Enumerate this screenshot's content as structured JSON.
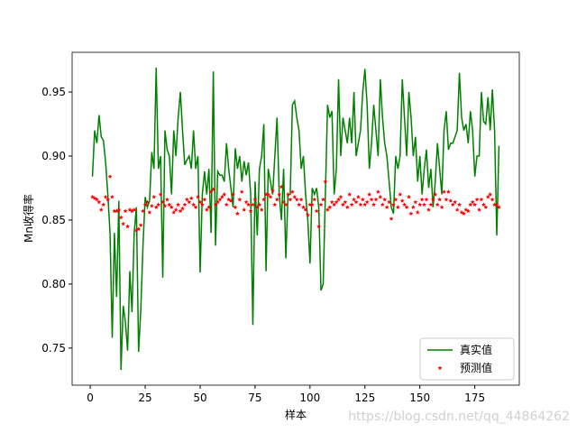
{
  "chart_data": {
    "type": "line_scatter",
    "xlabel": "样本",
    "ylabel": "Mn收得率",
    "watermark": "https://blog.csdn.net/qq_44864262",
    "legend": "lower right",
    "xlim": [
      -8.25,
      195.25
    ],
    "ylim": [
      0.721,
      0.981
    ],
    "xticks": [
      0,
      25,
      50,
      75,
      100,
      125,
      150,
      175
    ],
    "yticks": [
      0.75,
      {
        "value": 0.8,
        "label": "0.80"
      },
      0.85,
      {
        "value": 0.9,
        "label": "0.90"
      },
      0.95
    ],
    "x": [
      1,
      2,
      3,
      4,
      5,
      6,
      7,
      8,
      9,
      10,
      11,
      12,
      13,
      14,
      15,
      16,
      17,
      18,
      19,
      20,
      21,
      22,
      23,
      24,
      25,
      26,
      27,
      28,
      29,
      30,
      31,
      32,
      33,
      34,
      35,
      36,
      37,
      38,
      39,
      40,
      41,
      42,
      43,
      44,
      45,
      46,
      47,
      48,
      49,
      50,
      51,
      52,
      53,
      54,
      55,
      56,
      57,
      58,
      59,
      60,
      61,
      62,
      63,
      64,
      65,
      66,
      67,
      68,
      69,
      70,
      71,
      72,
      73,
      74,
      75,
      76,
      77,
      78,
      79,
      80,
      81,
      82,
      83,
      84,
      85,
      86,
      87,
      88,
      89,
      90,
      91,
      92,
      93,
      94,
      95,
      96,
      97,
      98,
      99,
      100,
      101,
      102,
      103,
      104,
      105,
      106,
      107,
      108,
      109,
      110,
      111,
      112,
      113,
      114,
      115,
      116,
      117,
      118,
      119,
      120,
      121,
      122,
      123,
      124,
      125,
      126,
      127,
      128,
      129,
      130,
      131,
      132,
      133,
      134,
      135,
      136,
      137,
      138,
      139,
      140,
      141,
      142,
      143,
      144,
      145,
      146,
      147,
      148,
      149,
      150,
      151,
      152,
      153,
      154,
      155,
      156,
      157,
      158,
      159,
      160,
      161,
      162,
      163,
      164,
      165,
      166,
      167,
      168,
      169,
      170,
      171,
      172,
      173,
      174,
      175,
      176,
      177,
      178,
      179,
      180,
      181,
      182,
      183,
      184,
      185,
      186
    ],
    "series": [
      {
        "name": "真实值",
        "kind": "line",
        "color": "#008000",
        "values": [
          0.884,
          0.92,
          0.91,
          0.932,
          0.915,
          0.912,
          0.895,
          0.87,
          0.84,
          0.758,
          0.84,
          0.79,
          0.865,
          0.733,
          0.783,
          0.77,
          0.748,
          0.81,
          0.778,
          0.84,
          0.86,
          0.747,
          0.78,
          0.83,
          0.868,
          0.86,
          0.865,
          0.903,
          0.89,
          0.969,
          0.89,
          0.9,
          0.805,
          0.92,
          0.905,
          0.9,
          0.87,
          0.92,
          0.9,
          0.93,
          0.95,
          0.92,
          0.893,
          0.897,
          0.9,
          0.89,
          0.92,
          0.89,
          0.9,
          0.809,
          0.87,
          0.888,
          0.87,
          0.89,
          0.84,
          0.966,
          0.83,
          0.888,
          0.885,
          0.885,
          0.88,
          0.91,
          0.89,
          0.875,
          0.86,
          0.906,
          0.89,
          0.9,
          0.88,
          0.896,
          0.885,
          0.895,
          0.87,
          0.768,
          0.88,
          0.838,
          0.89,
          0.9,
          0.925,
          0.81,
          0.89,
          0.88,
          0.87,
          0.9,
          0.93,
          0.87,
          0.85,
          0.89,
          0.82,
          0.87,
          0.87,
          0.94,
          0.943,
          0.93,
          0.92,
          0.89,
          0.9,
          0.87,
          0.85,
          0.816,
          0.875,
          0.87,
          0.875,
          0.86,
          0.795,
          0.8,
          0.87,
          0.94,
          0.93,
          0.935,
          0.87,
          0.89,
          0.96,
          0.9,
          0.93,
          0.92,
          0.91,
          0.93,
          0.91,
          0.95,
          0.9,
          0.91,
          0.92,
          0.95,
          0.968,
          0.94,
          0.89,
          0.91,
          0.94,
          0.92,
          0.9,
          0.96,
          0.93,
          0.91,
          0.9,
          0.88,
          0.86,
          0.855,
          0.9,
          0.89,
          0.9,
          0.96,
          0.93,
          0.9,
          0.95,
          0.93,
          0.9,
          0.915,
          0.88,
          0.9,
          0.87,
          0.89,
          0.905,
          0.875,
          0.89,
          0.86,
          0.88,
          0.91,
          0.89,
          0.87,
          0.92,
          0.935,
          0.905,
          0.91,
          0.91,
          0.915,
          0.92,
          0.965,
          0.93,
          0.92,
          0.925,
          0.91,
          0.935,
          0.92,
          0.884,
          0.9,
          0.9,
          0.95,
          0.927,
          0.925,
          0.946,
          0.92,
          0.952,
          0.92,
          0.838,
          0.908
        ]
      },
      {
        "name": "预测值",
        "kind": "scatter",
        "color": "#ff0000",
        "values": [
          0.868,
          0.867,
          0.866,
          0.864,
          0.858,
          0.862,
          0.868,
          0.866,
          0.884,
          0.868,
          0.857,
          0.857,
          0.858,
          0.852,
          0.847,
          0.857,
          0.845,
          0.858,
          0.857,
          0.858,
          0.842,
          0.843,
          0.846,
          0.857,
          0.862,
          0.864,
          0.856,
          0.861,
          0.868,
          0.86,
          0.862,
          0.87,
          0.864,
          0.861,
          0.866,
          0.862,
          0.86,
          0.856,
          0.858,
          0.862,
          0.857,
          0.859,
          0.862,
          0.866,
          0.864,
          0.867,
          0.862,
          0.86,
          0.868,
          0.864,
          0.862,
          0.866,
          0.858,
          0.86,
          0.872,
          0.874,
          0.862,
          0.864,
          0.866,
          0.868,
          0.87,
          0.862,
          0.866,
          0.865,
          0.87,
          0.86,
          0.855,
          0.866,
          0.872,
          0.858,
          0.864,
          0.862,
          0.857,
          0.862,
          0.866,
          0.86,
          0.862,
          0.858,
          0.866,
          0.87,
          0.87,
          0.868,
          0.873,
          0.862,
          0.866,
          0.87,
          0.876,
          0.864,
          0.862,
          0.87,
          0.866,
          0.872,
          0.868,
          0.866,
          0.862,
          0.866,
          0.86,
          0.858,
          0.854,
          0.862,
          0.862,
          0.866,
          0.857,
          0.845,
          0.862,
          0.866,
          0.88,
          0.858,
          0.86,
          0.864,
          0.862,
          0.864,
          0.866,
          0.868,
          0.862,
          0.864,
          0.86,
          0.87,
          0.862,
          0.866,
          0.864,
          0.868,
          0.862,
          0.866,
          0.862,
          0.864,
          0.87,
          0.866,
          0.862,
          0.866,
          0.872,
          0.868,
          0.862,
          0.866,
          0.86,
          0.864,
          0.851,
          0.862,
          0.866,
          0.86,
          0.87,
          0.865,
          0.862,
          0.86,
          0.868,
          0.855,
          0.86,
          0.864,
          0.856,
          0.862,
          0.866,
          0.862,
          0.866,
          0.858,
          0.862,
          0.866,
          0.87,
          0.862,
          0.866,
          0.86,
          0.872,
          0.866,
          0.872,
          0.865,
          0.862,
          0.864,
          0.858,
          0.862,
          0.856,
          0.855,
          0.858,
          0.857,
          0.862,
          0.864,
          0.862,
          0.866,
          0.858,
          0.866,
          0.862,
          0.86,
          0.868,
          0.87,
          0.866,
          0.862,
          0.862,
          0.86
        ]
      }
    ]
  }
}
